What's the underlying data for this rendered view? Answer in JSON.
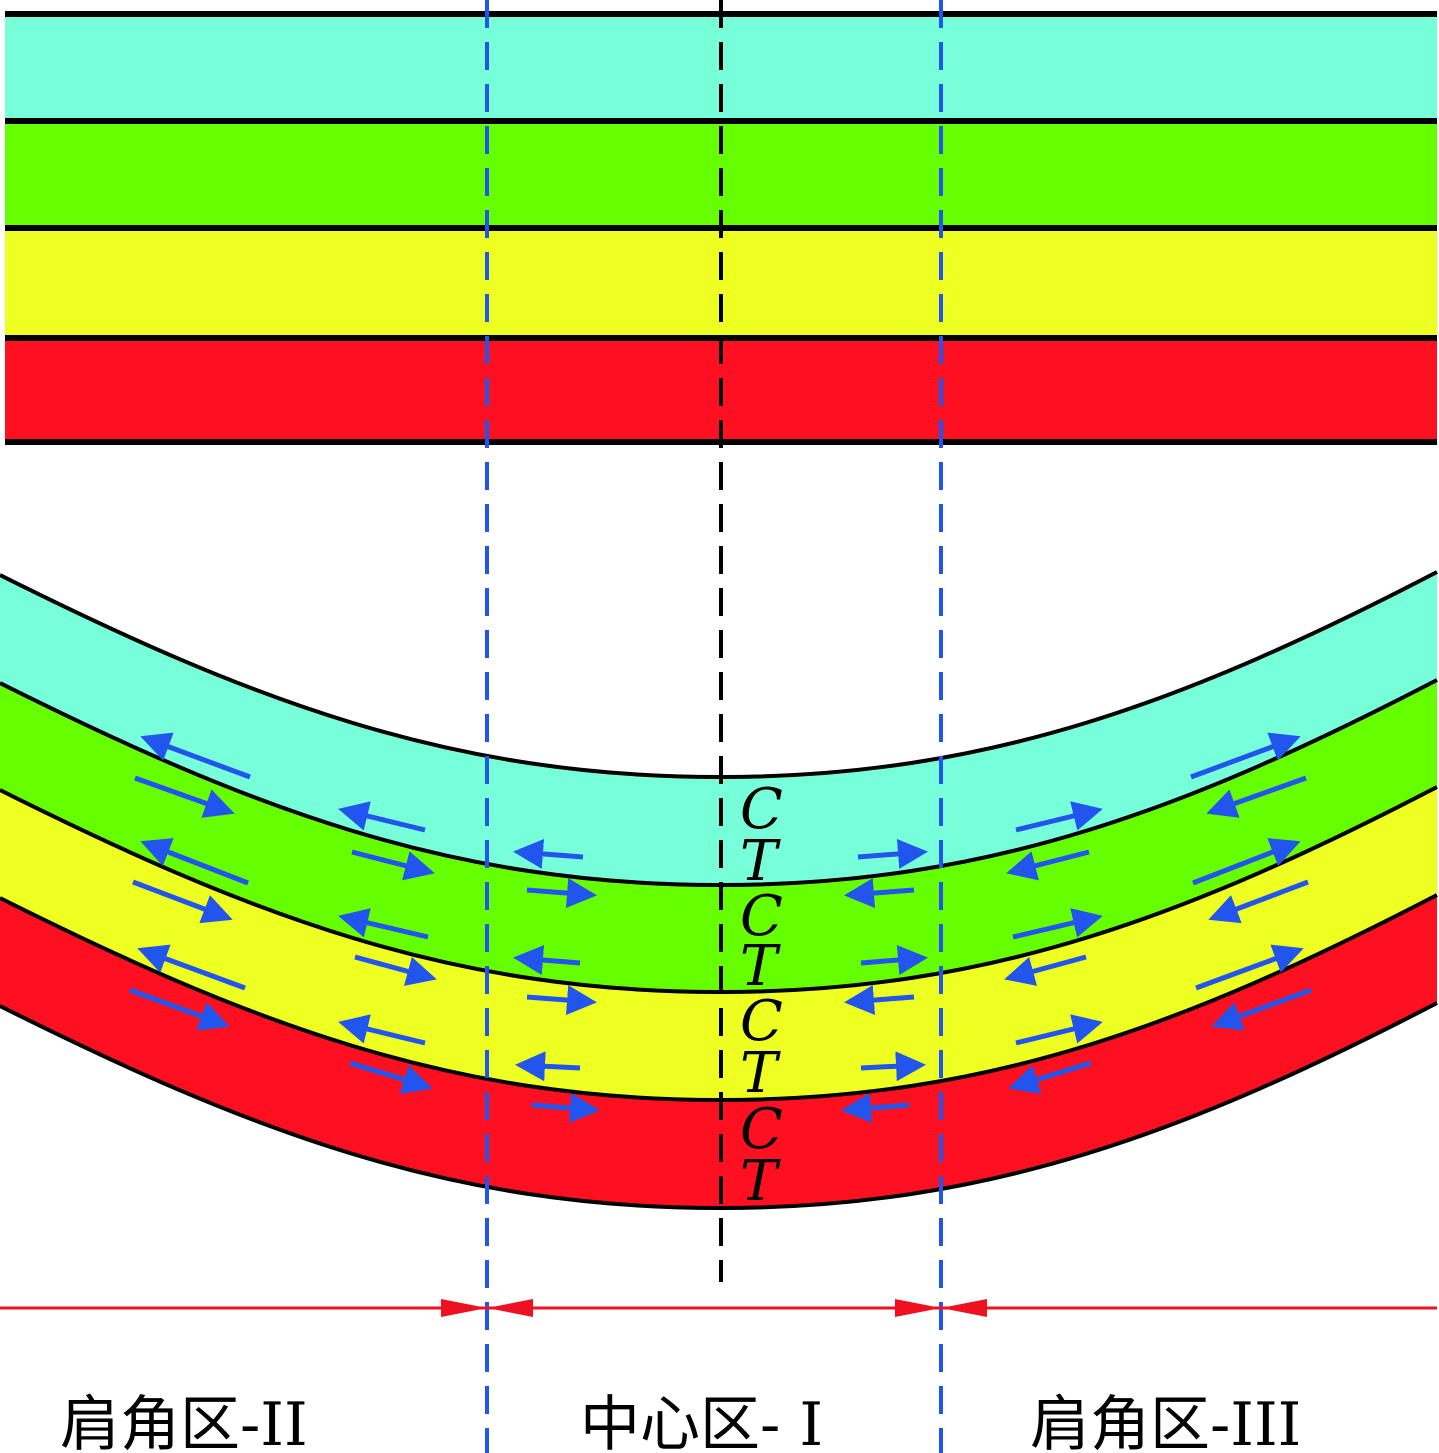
{
  "colors": {
    "layer_colors": [
      "#77ffd9",
      "#66ff00",
      "#eeff22",
      "#ff1020"
    ],
    "boundary_line": "#000000",
    "zone_divider": "#2255ee",
    "center_line": "#000000",
    "stress_arrow": "#2255ee",
    "zone_span_arrow": "#ee1122"
  },
  "stress_letters": [
    "C",
    "T",
    "C",
    "T",
    "C",
    "T",
    "C",
    "T"
  ],
  "zones": [
    {
      "label": "肩角区-II"
    },
    {
      "label": "中心区- I"
    },
    {
      "label": "肩角区-III"
    }
  ]
}
